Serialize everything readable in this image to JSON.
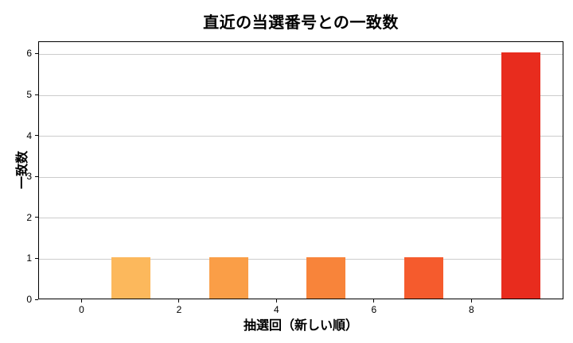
{
  "chart_data": {
    "type": "bar",
    "title": "直近の当選番号との一致数",
    "xlabel": "抽選回（新しい順）",
    "ylabel": "一致数",
    "categories": [
      0,
      1,
      2,
      3,
      4,
      5,
      6,
      7,
      8,
      9
    ],
    "values": [
      0,
      1,
      0,
      1,
      0,
      1,
      0,
      1,
      0,
      6
    ],
    "bar_colors": [
      "#ffffff",
      "#fcb85c",
      "#ffffff",
      "#fa9e47",
      "#ffffff",
      "#f8843a",
      "#ffffff",
      "#f55b2d",
      "#ffffff",
      "#e82c1e"
    ],
    "bar_width": 0.8,
    "xlim": [
      -0.89,
      9.89
    ],
    "ylim": [
      0,
      6.3
    ],
    "x_ticks": [
      0,
      2,
      4,
      6,
      8
    ],
    "y_ticks": [
      0,
      1,
      2,
      3,
      4,
      5,
      6
    ],
    "grid": "horizontal",
    "grid_color": "#cccccc",
    "spine_color": "#000000",
    "tick_color": "#000000",
    "text_color": "#000000",
    "background": "#ffffff",
    "legend": "none"
  }
}
